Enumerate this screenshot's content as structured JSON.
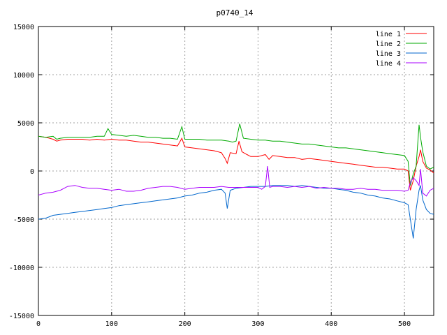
{
  "chart_data": {
    "type": "line",
    "title": "p0740_14",
    "xlabel": "",
    "ylabel": "",
    "xlim": [
      0,
      540
    ],
    "ylim": [
      -15000,
      15000
    ],
    "x_ticks": [
      0,
      100,
      200,
      300,
      400,
      500
    ],
    "y_ticks": [
      -15000,
      -10000,
      -5000,
      0,
      5000,
      10000,
      15000
    ],
    "grid": true,
    "legend_position": "top-right",
    "series": [
      {
        "name": "line 1",
        "color": "#ff0000",
        "x": [
          0,
          10,
          20,
          25,
          30,
          40,
          50,
          60,
          70,
          80,
          90,
          100,
          110,
          120,
          130,
          140,
          150,
          160,
          170,
          180,
          190,
          196,
          200,
          210,
          220,
          230,
          240,
          250,
          255,
          258,
          262,
          270,
          274,
          278,
          285,
          290,
          300,
          310,
          315,
          320,
          330,
          340,
          350,
          360,
          370,
          380,
          390,
          400,
          410,
          420,
          430,
          440,
          450,
          460,
          470,
          480,
          490,
          500,
          505,
          508,
          512,
          516,
          520,
          522,
          525,
          530,
          535,
          540
        ],
        "y": [
          3600,
          3500,
          3300,
          3100,
          3200,
          3300,
          3300,
          3300,
          3200,
          3300,
          3200,
          3300,
          3200,
          3200,
          3100,
          3000,
          3000,
          2900,
          2800,
          2700,
          2600,
          3400,
          2500,
          2400,
          2300,
          2200,
          2100,
          1900,
          1300,
          800,
          1900,
          1800,
          3100,
          2000,
          1700,
          1500,
          1500,
          1700,
          1200,
          1600,
          1500,
          1400,
          1400,
          1200,
          1300,
          1200,
          1100,
          1000,
          900,
          800,
          700,
          600,
          500,
          400,
          400,
          300,
          200,
          200,
          0,
          -2000,
          -1000,
          500,
          1500,
          2200,
          1000,
          300,
          100,
          -200
        ]
      },
      {
        "name": "line 2",
        "color": "#00aa00",
        "x": [
          0,
          10,
          20,
          25,
          30,
          40,
          50,
          60,
          70,
          80,
          90,
          95,
          100,
          110,
          120,
          130,
          140,
          150,
          160,
          170,
          180,
          190,
          196,
          200,
          210,
          220,
          230,
          240,
          250,
          260,
          265,
          270,
          275,
          280,
          290,
          300,
          310,
          320,
          330,
          340,
          350,
          360,
          370,
          380,
          390,
          400,
          410,
          420,
          430,
          440,
          450,
          460,
          470,
          480,
          490,
          500,
          505,
          508,
          512,
          516,
          520,
          522,
          525,
          530,
          535,
          540
        ],
        "y": [
          3600,
          3500,
          3600,
          3300,
          3400,
          3500,
          3500,
          3500,
          3500,
          3600,
          3600,
          4400,
          3800,
          3700,
          3600,
          3700,
          3600,
          3500,
          3500,
          3400,
          3400,
          3300,
          4600,
          3300,
          3300,
          3300,
          3200,
          3200,
          3200,
          3100,
          3000,
          3100,
          4900,
          3400,
          3300,
          3200,
          3200,
          3100,
          3100,
          3000,
          2900,
          2800,
          2800,
          2700,
          2600,
          2500,
          2400,
          2400,
          2300,
          2200,
          2100,
          2000,
          1900,
          1800,
          1700,
          1600,
          1000,
          -1500,
          -300,
          500,
          4800,
          3500,
          2000,
          500,
          200,
          400
        ]
      },
      {
        "name": "line 3",
        "color": "#0066cc",
        "x": [
          0,
          10,
          20,
          30,
          40,
          50,
          60,
          70,
          80,
          90,
          100,
          110,
          120,
          130,
          140,
          150,
          160,
          170,
          180,
          190,
          200,
          210,
          220,
          230,
          240,
          250,
          255,
          258,
          262,
          270,
          280,
          290,
          300,
          310,
          320,
          330,
          340,
          350,
          360,
          370,
          380,
          390,
          400,
          410,
          420,
          430,
          440,
          450,
          460,
          470,
          480,
          490,
          500,
          505,
          508,
          512,
          516,
          520,
          522,
          525,
          530,
          535,
          540
        ],
        "y": [
          -5000,
          -4900,
          -4600,
          -4500,
          -4400,
          -4300,
          -4200,
          -4100,
          -4000,
          -3900,
          -3800,
          -3600,
          -3500,
          -3400,
          -3300,
          -3200,
          -3100,
          -3000,
          -2900,
          -2800,
          -2600,
          -2500,
          -2300,
          -2200,
          -2000,
          -1900,
          -2300,
          -3900,
          -2000,
          -1800,
          -1700,
          -1600,
          -1600,
          -1600,
          -1500,
          -1500,
          -1500,
          -1600,
          -1500,
          -1600,
          -1700,
          -1800,
          -1800,
          -1900,
          -2000,
          -2200,
          -2300,
          -2500,
          -2600,
          -2800,
          -2900,
          -3100,
          -3300,
          -3500,
          -5000,
          -7000,
          -4000,
          -2000,
          -1500,
          -3000,
          -4000,
          -4400,
          -4500
        ]
      },
      {
        "name": "line 4",
        "color": "#aa00ff",
        "x": [
          0,
          10,
          20,
          30,
          40,
          50,
          60,
          70,
          80,
          90,
          100,
          110,
          120,
          130,
          140,
          150,
          160,
          170,
          180,
          190,
          200,
          210,
          220,
          230,
          240,
          250,
          260,
          270,
          280,
          290,
          300,
          305,
          310,
          313,
          316,
          320,
          330,
          340,
          350,
          360,
          370,
          380,
          390,
          400,
          410,
          420,
          430,
          440,
          450,
          460,
          470,
          480,
          490,
          500,
          505,
          508,
          512,
          516,
          520,
          522,
          525,
          530,
          535,
          540
        ],
        "y": [
          -2500,
          -2300,
          -2200,
          -2000,
          -1600,
          -1500,
          -1700,
          -1800,
          -1800,
          -1900,
          -2000,
          -1900,
          -2100,
          -2100,
          -2000,
          -1800,
          -1700,
          -1600,
          -1600,
          -1700,
          -1900,
          -1800,
          -1700,
          -1700,
          -1700,
          -1600,
          -1700,
          -1700,
          -1700,
          -1700,
          -1700,
          -1900,
          -1600,
          500,
          -1700,
          -1600,
          -1600,
          -1700,
          -1600,
          -1700,
          -1600,
          -1800,
          -1700,
          -1800,
          -1800,
          -1900,
          -1900,
          -1800,
          -1900,
          -1900,
          -2000,
          -2000,
          -2000,
          -2100,
          -2000,
          -1200,
          -700,
          -1000,
          -1500,
          200,
          -2300,
          -2600,
          -2000,
          -1800
        ]
      }
    ]
  }
}
